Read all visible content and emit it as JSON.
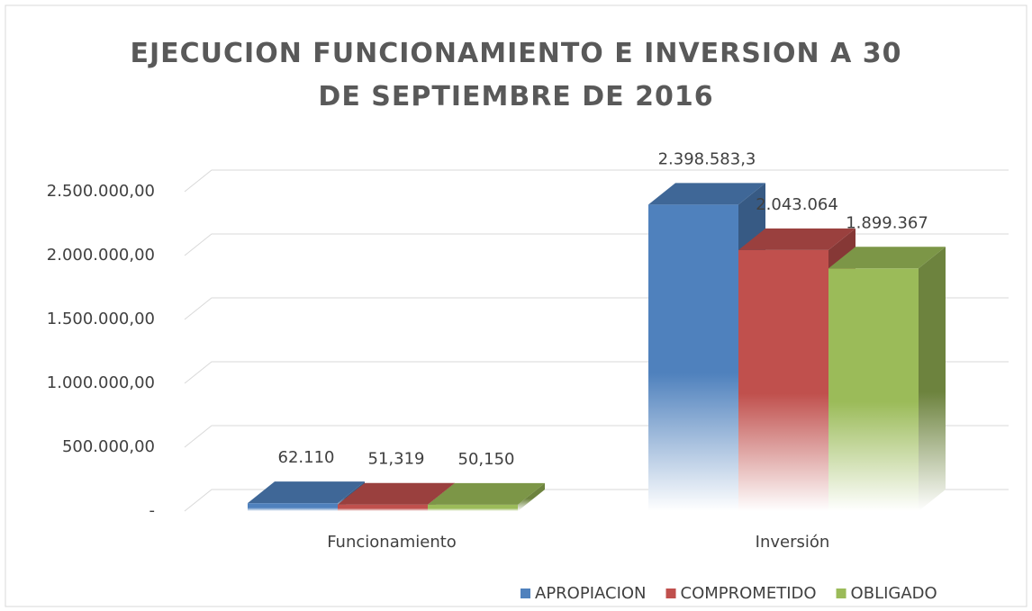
{
  "chart_data": {
    "type": "bar3d",
    "title": "EJECUCION FUNCIONAMIENTO E INVERSION A 30 DE SEPTIEMBRE DE 2016",
    "categories": [
      "Funcionamiento",
      "Inversión"
    ],
    "series": [
      {
        "name": "APROPIACION",
        "color": "#4f81bd",
        "values": [
          62110,
          2398583.3
        ],
        "value_labels": [
          "62.110",
          "2.398.583,3"
        ]
      },
      {
        "name": "COMPROMETIDO",
        "color": "#c0504d",
        "values": [
          51319,
          2043064
        ],
        "value_labels": [
          "51,319",
          "2.043.064"
        ]
      },
      {
        "name": "OBLIGADO",
        "color": "#9bbb59",
        "values": [
          50150,
          1899367
        ],
        "value_labels": [
          "50,150",
          "1.899.367"
        ]
      }
    ],
    "ylim": [
      0,
      2500000
    ],
    "yticks": [
      {
        "value": 0,
        "label": "-"
      },
      {
        "value": 500000,
        "label": "500.000,00"
      },
      {
        "value": 1000000,
        "label": "1.000.000,00"
      },
      {
        "value": 1500000,
        "label": "1.500.000,00"
      },
      {
        "value": 2000000,
        "label": "2.000.000,00"
      },
      {
        "value": 2500000,
        "label": "2.500.000,00"
      }
    ],
    "grid": true,
    "legend": "bottom-right"
  }
}
